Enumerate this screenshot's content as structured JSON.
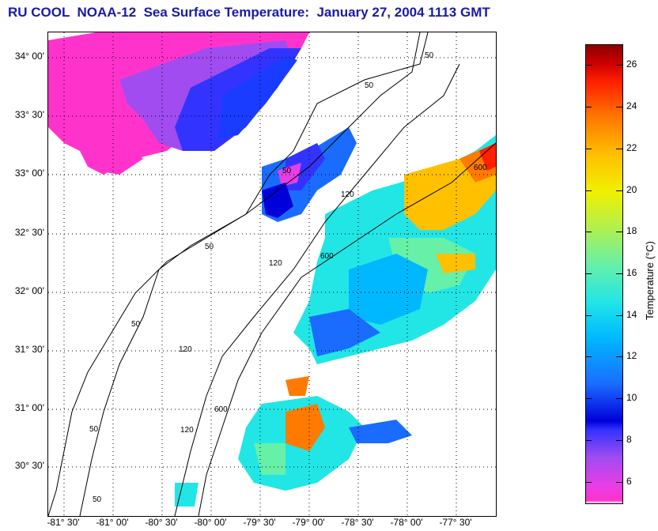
{
  "title": "RU COOL  NOAA-12  Sea Surface Temperature:  January 27, 2004 1113 GMT",
  "map": {
    "lat_labels": [
      "34° 00'",
      "33° 30'",
      "33° 00'",
      "32° 30'",
      "32° 00'",
      "31° 30'",
      "31° 00'",
      "30° 30'"
    ],
    "lon_labels": [
      "-81° 30'",
      "-81° 00'",
      "-80° 30'",
      "-80° 00'",
      "-79° 30'",
      "-79° 00'",
      "-78° 30'",
      "-78° 00'",
      "-77° 30'"
    ],
    "contour_labels": [
      "50",
      "50",
      "50",
      "50",
      "50",
      "50",
      "120",
      "120",
      "120",
      "120",
      "600",
      "600",
      "600",
      "50"
    ]
  },
  "colorbar": {
    "title": "Temperature (°C)",
    "ticks": [
      "26",
      "24",
      "22",
      "20",
      "18",
      "16",
      "14",
      "12",
      "10",
      "8",
      "6"
    ],
    "tick_values": [
      26,
      24,
      22,
      20,
      18,
      16,
      14,
      12,
      10,
      8,
      6
    ],
    "range": [
      5,
      27
    ],
    "colors": [
      "#ff33cc",
      "#3333ff",
      "#0000d9",
      "#00b8ff",
      "#22e6e6",
      "#b0f050",
      "#f0f000",
      "#ff7a00",
      "#cc0000",
      "#8b0000"
    ]
  }
}
